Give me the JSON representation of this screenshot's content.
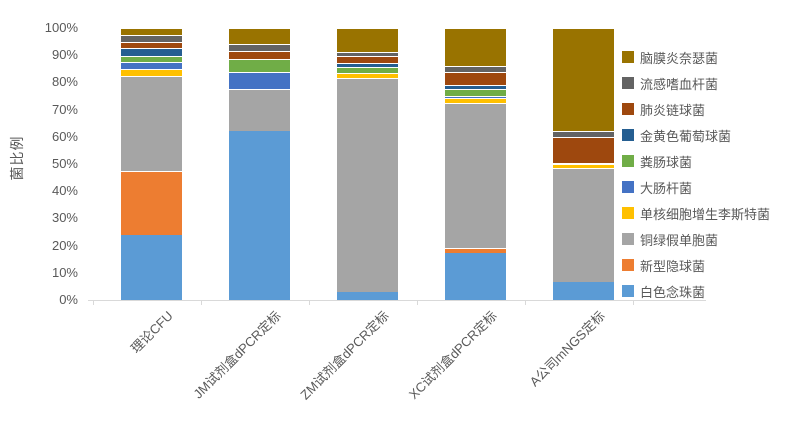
{
  "chart_data": {
    "type": "bar",
    "stacked": true,
    "percent": true,
    "ylabel": "菌比例",
    "ylim": [
      0,
      100
    ],
    "ytick_labels": [
      "0%",
      "10%",
      "20%",
      "30%",
      "40%",
      "50%",
      "60%",
      "70%",
      "80%",
      "90%",
      "100%"
    ],
    "grid": false,
    "legend_position": "right",
    "legend_order_top_to_bottom": [
      "脑膜炎奈瑟菌",
      "流感嗜血杆菌",
      "肺炎链球菌",
      "金黄色葡萄球菌",
      "粪肠球菌",
      "大肠杆菌",
      "单核细胞增生李斯特菌",
      "铜绿假单胞菌",
      "新型隐球菌",
      "白色念珠菌"
    ],
    "categories": [
      "理论CFU",
      "JM试剂盒dPCR定标",
      "ZM试剂盒dPCR定标",
      "XC试剂盒dPCR定标",
      "A公司mNGS定标"
    ],
    "series": [
      {
        "name": "白色念珠菌",
        "color": "#5B9BD5",
        "values": [
          24,
          62,
          3,
          17.3,
          6.8
        ]
      },
      {
        "name": "新型隐球菌",
        "color": "#ED7D31",
        "values": [
          23.5,
          0,
          0,
          1.8,
          0
        ]
      },
      {
        "name": "铜绿假单胞菌",
        "color": "#A5A5A5",
        "values": [
          34.8,
          15.5,
          78.5,
          53.4,
          41.7
        ]
      },
      {
        "name": "单核细胞增生李斯特菌",
        "color": "#FFC000",
        "values": [
          2.5,
          0,
          2,
          1.6,
          1.4
        ]
      },
      {
        "name": "大肠杆菌",
        "color": "#4472C4",
        "values": [
          2.6,
          6.5,
          0,
          1,
          0
        ]
      },
      {
        "name": "粪肠球菌",
        "color": "#70AD47",
        "values": [
          2.5,
          4.5,
          2.2,
          2.4,
          0
        ]
      },
      {
        "name": "金黄色葡萄球菌",
        "color": "#255E91",
        "values": [
          2.6,
          0,
          1.3,
          1.4,
          0.6
        ]
      },
      {
        "name": "肺炎链球菌",
        "color": "#9E480E",
        "values": [
          2.5,
          3,
          2.8,
          5,
          9.6
        ]
      },
      {
        "name": "流感嗜血杆菌",
        "color": "#636363",
        "values": [
          2.5,
          2.5,
          1.4,
          2.3,
          1.9
        ]
      },
      {
        "name": "脑膜炎奈瑟菌",
        "color": "#997300",
        "values": [
          2.5,
          6,
          8.8,
          13.8,
          38
        ]
      }
    ],
    "axis_color": "#D9D9D9",
    "label_color": "#595959"
  }
}
